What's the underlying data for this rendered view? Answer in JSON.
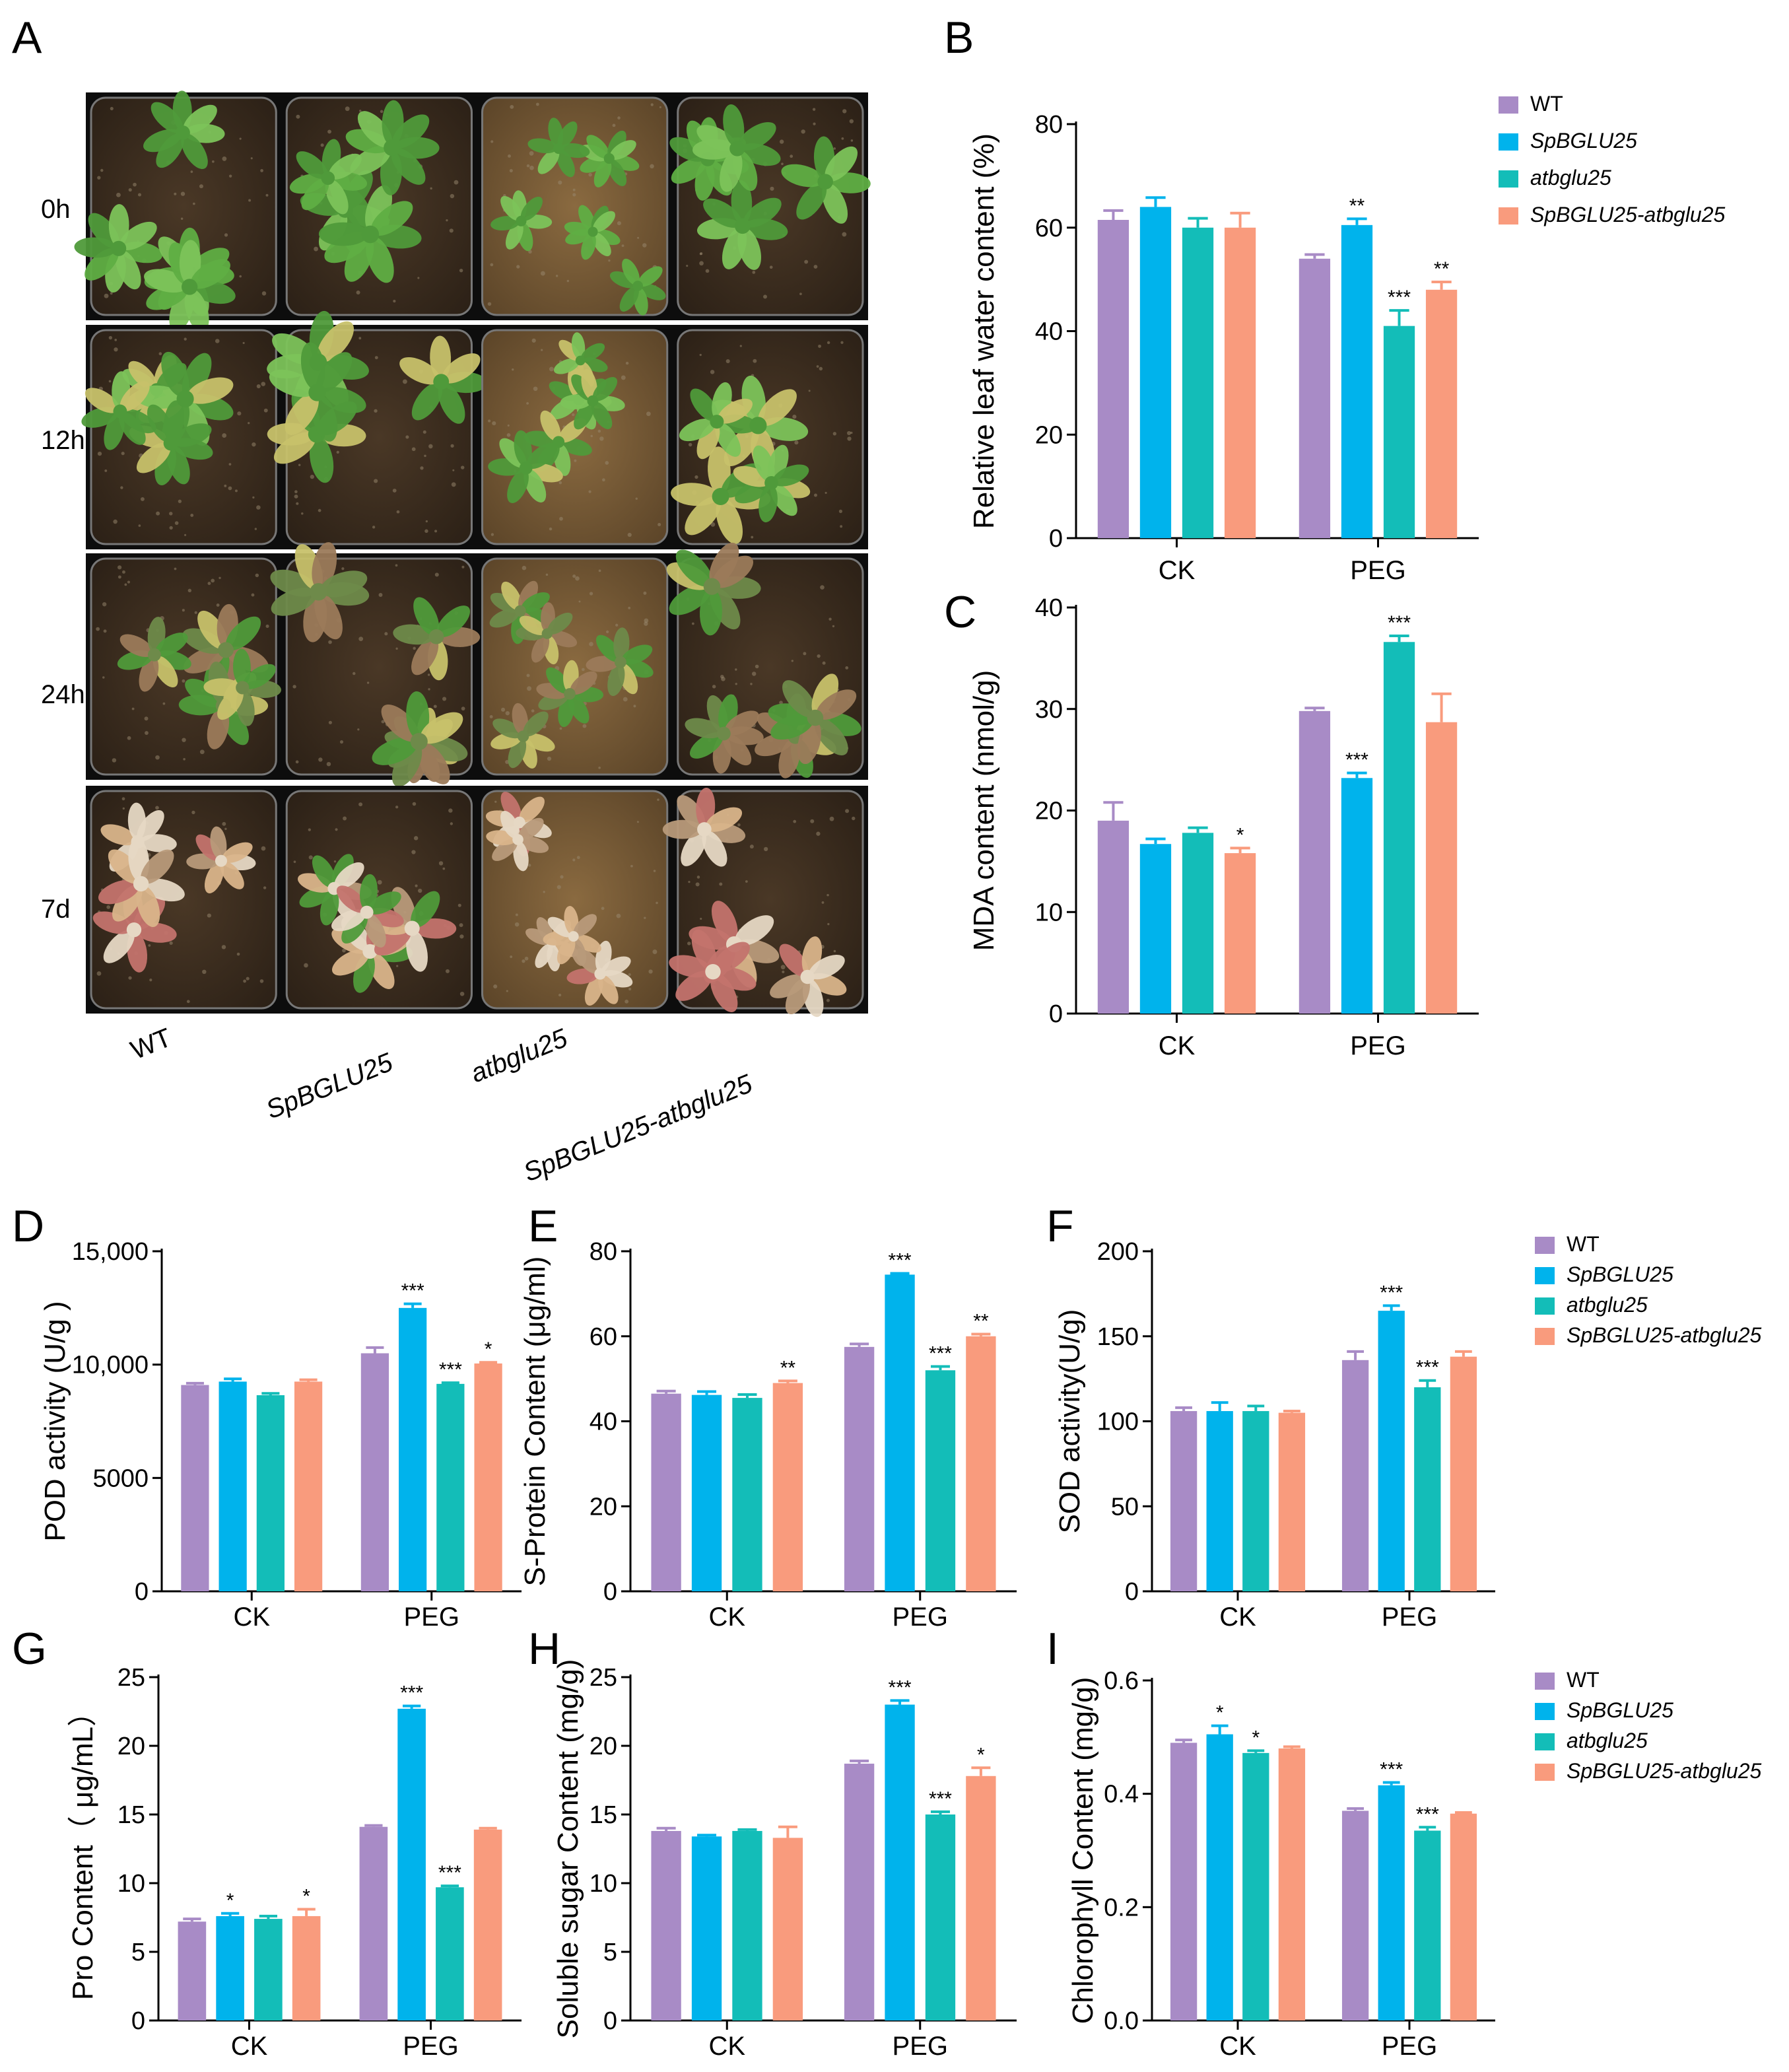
{
  "colors": {
    "WT": "#A88BC6",
    "SpBGLU25": "#00B3EC",
    "atbglu25": "#13BDB8",
    "SpBGLU25-atbglu25": "#F99B7D",
    "soil": "#3a2c1f",
    "tray": "#1a1a1a",
    "leaf": "#4f9a3a",
    "leaf_light": "#7cc35a",
    "leaf_yellow": "#c7c16a",
    "leaf_red": "#c3736d",
    "leaf_pale": "#e6d8c4"
  },
  "photo_panel": {
    "label": "A",
    "row_labels": [
      "0h",
      "12h",
      "24h",
      "7d"
    ],
    "col_labels": [
      "WT",
      "SpBGLU25",
      "atbglu25",
      "SpBGLU25-atbglu25"
    ]
  },
  "legend_labels": [
    "WT",
    "SpBGLU25",
    "atbglu25",
    "SpBGLU25-atbglu25"
  ],
  "chart_data": [
    {
      "panel": "B",
      "type": "bar",
      "categories": [
        "CK",
        "PEG"
      ],
      "ylabel": "Relative leaf water content (%)",
      "ylim": [
        0,
        80
      ],
      "ticks": [
        "0",
        "20",
        "40",
        "60",
        "80"
      ],
      "series": [
        {
          "name": "WT",
          "values": [
            61.5,
            54
          ],
          "err": [
            1.8,
            0.8
          ],
          "sig": [
            "",
            ""
          ]
        },
        {
          "name": "SpBGLU25",
          "values": [
            64,
            60.5
          ],
          "err": [
            1.8,
            1.2
          ],
          "sig": [
            "",
            "**"
          ]
        },
        {
          "name": "atbglu25",
          "values": [
            60,
            41
          ],
          "err": [
            1.8,
            3
          ],
          "sig": [
            "",
            "***"
          ]
        },
        {
          "name": "SpBGLU25-atbglu25",
          "values": [
            60,
            48
          ],
          "err": [
            2.8,
            1.5
          ],
          "sig": [
            "",
            "**"
          ]
        }
      ],
      "legend": true
    },
    {
      "panel": "C",
      "type": "bar",
      "categories": [
        "CK",
        "PEG"
      ],
      "ylabel": "MDA content (nmol/g)",
      "ylim": [
        0,
        40
      ],
      "ticks": [
        "0",
        "10",
        "20",
        "30",
        "40"
      ],
      "series": [
        {
          "name": "WT",
          "values": [
            19,
            29.8
          ],
          "err": [
            1.8,
            0.3
          ],
          "sig": [
            "",
            ""
          ]
        },
        {
          "name": "SpBGLU25",
          "values": [
            16.7,
            23.2
          ],
          "err": [
            0.5,
            0.5
          ],
          "sig": [
            "",
            "***"
          ]
        },
        {
          "name": "atbglu25",
          "values": [
            17.8,
            36.6
          ],
          "err": [
            0.5,
            0.6
          ],
          "sig": [
            "",
            "***"
          ]
        },
        {
          "name": "SpBGLU25-atbglu25",
          "values": [
            15.8,
            28.7
          ],
          "err": [
            0.5,
            2.8
          ],
          "sig": [
            "*",
            ""
          ]
        }
      ],
      "legend": false
    },
    {
      "panel": "D",
      "type": "bar",
      "categories": [
        "CK",
        "PEG"
      ],
      "ylabel": "POD activity (U/g )",
      "ylim": [
        0,
        15000
      ],
      "ticks": [
        "0",
        "5000",
        "10,000",
        "15,000"
      ],
      "series": [
        {
          "name": "WT",
          "values": [
            9100,
            10500
          ],
          "err": [
            80,
            250
          ],
          "sig": [
            "",
            ""
          ]
        },
        {
          "name": "SpBGLU25",
          "values": [
            9250,
            12500
          ],
          "err": [
            120,
            180
          ],
          "sig": [
            "",
            "***"
          ]
        },
        {
          "name": "atbglu25",
          "values": [
            8650,
            9150
          ],
          "err": [
            80,
            50
          ],
          "sig": [
            "",
            "***"
          ]
        },
        {
          "name": "SpBGLU25-atbglu25",
          "values": [
            9250,
            10050
          ],
          "err": [
            80,
            50
          ],
          "sig": [
            "",
            "*"
          ]
        }
      ],
      "legend": false
    },
    {
      "panel": "E",
      "type": "bar",
      "categories": [
        "CK",
        "PEG"
      ],
      "ylabel": "S-Protein Content (μg/ml)",
      "ylim": [
        0,
        80
      ],
      "ticks": [
        "0",
        "20",
        "40",
        "60",
        "80"
      ],
      "series": [
        {
          "name": "WT",
          "values": [
            46.5,
            57.5
          ],
          "err": [
            0.6,
            0.7
          ],
          "sig": [
            "",
            ""
          ]
        },
        {
          "name": "SpBGLU25",
          "values": [
            46.2,
            74.5
          ],
          "err": [
            0.8,
            0.3
          ],
          "sig": [
            "",
            "***"
          ]
        },
        {
          "name": "atbglu25",
          "values": [
            45.5,
            52
          ],
          "err": [
            0.8,
            0.9
          ],
          "sig": [
            "",
            "***"
          ]
        },
        {
          "name": "SpBGLU25-atbglu25",
          "values": [
            49,
            60
          ],
          "err": [
            0.5,
            0.5
          ],
          "sig": [
            "**",
            "**"
          ]
        }
      ],
      "legend": false
    },
    {
      "panel": "F",
      "type": "bar",
      "categories": [
        "CK",
        "PEG"
      ],
      "ylabel": "SOD activity(U/g)",
      "ylim": [
        0,
        200
      ],
      "ticks": [
        "0",
        "50",
        "100",
        "150",
        "200"
      ],
      "series": [
        {
          "name": "WT",
          "values": [
            106,
            136
          ],
          "err": [
            2,
            5
          ],
          "sig": [
            "",
            ""
          ]
        },
        {
          "name": "SpBGLU25",
          "values": [
            106,
            165
          ],
          "err": [
            5,
            3
          ],
          "sig": [
            "",
            "***"
          ]
        },
        {
          "name": "atbglu25",
          "values": [
            106,
            120
          ],
          "err": [
            3,
            4
          ],
          "sig": [
            "",
            "***"
          ]
        },
        {
          "name": "SpBGLU25-atbglu25",
          "values": [
            105,
            138
          ],
          "err": [
            1,
            3
          ],
          "sig": [
            "",
            ""
          ]
        }
      ],
      "legend": true
    },
    {
      "panel": "G",
      "type": "bar",
      "categories": [
        "CK",
        "PEG"
      ],
      "ylabel": "Pro Content（ μg/mL）",
      "ylim": [
        0,
        25
      ],
      "ticks": [
        "0",
        "5",
        "10",
        "15",
        "20",
        "25"
      ],
      "series": [
        {
          "name": "WT",
          "values": [
            7.2,
            14.1
          ],
          "err": [
            0.2,
            0.1
          ],
          "sig": [
            "",
            ""
          ]
        },
        {
          "name": "SpBGLU25",
          "values": [
            7.6,
            22.7
          ],
          "err": [
            0.2,
            0.2
          ],
          "sig": [
            "*",
            "***"
          ]
        },
        {
          "name": "atbglu25",
          "values": [
            7.4,
            9.7
          ],
          "err": [
            0.2,
            0.1
          ],
          "sig": [
            "",
            "***"
          ]
        },
        {
          "name": "SpBGLU25-atbglu25",
          "values": [
            7.6,
            13.9
          ],
          "err": [
            0.5,
            0.1
          ],
          "sig": [
            "*",
            ""
          ]
        }
      ],
      "legend": false
    },
    {
      "panel": "H",
      "type": "bar",
      "categories": [
        "CK",
        "PEG"
      ],
      "ylabel": "Soluble sugar Content (mg/g)",
      "ylim": [
        0,
        25
      ],
      "ticks": [
        "0",
        "5",
        "10",
        "15",
        "20",
        "25"
      ],
      "series": [
        {
          "name": "WT",
          "values": [
            13.8,
            18.7
          ],
          "err": [
            0.2,
            0.2
          ],
          "sig": [
            "",
            ""
          ]
        },
        {
          "name": "SpBGLU25",
          "values": [
            13.4,
            23
          ],
          "err": [
            0.1,
            0.3
          ],
          "sig": [
            "",
            "***"
          ]
        },
        {
          "name": "atbglu25",
          "values": [
            13.8,
            15
          ],
          "err": [
            0.1,
            0.2
          ],
          "sig": [
            "",
            "***"
          ]
        },
        {
          "name": "SpBGLU25-atbglu25",
          "values": [
            13.3,
            17.8
          ],
          "err": [
            0.8,
            0.6
          ],
          "sig": [
            "",
            "*"
          ]
        }
      ],
      "legend": false
    },
    {
      "panel": "I",
      "type": "bar",
      "categories": [
        "CK",
        "PEG"
      ],
      "ylabel": "Chlorophyll Content (mg/g)",
      "ylim": [
        0,
        0.6
      ],
      "ticks": [
        "0.0",
        "0.2",
        "0.4",
        "0.6"
      ],
      "series": [
        {
          "name": "WT",
          "values": [
            0.49,
            0.37
          ],
          "err": [
            0.005,
            0.004
          ],
          "sig": [
            "",
            ""
          ]
        },
        {
          "name": "SpBGLU25",
          "values": [
            0.505,
            0.415
          ],
          "err": [
            0.015,
            0.005
          ],
          "sig": [
            "*",
            "***"
          ]
        },
        {
          "name": "atbglu25",
          "values": [
            0.472,
            0.335
          ],
          "err": [
            0.004,
            0.006
          ],
          "sig": [
            "*",
            "***"
          ]
        },
        {
          "name": "SpBGLU25-atbglu25",
          "values": [
            0.48,
            0.365
          ],
          "err": [
            0.003,
            0.002
          ],
          "sig": [
            "",
            ""
          ]
        }
      ],
      "legend": true
    }
  ]
}
